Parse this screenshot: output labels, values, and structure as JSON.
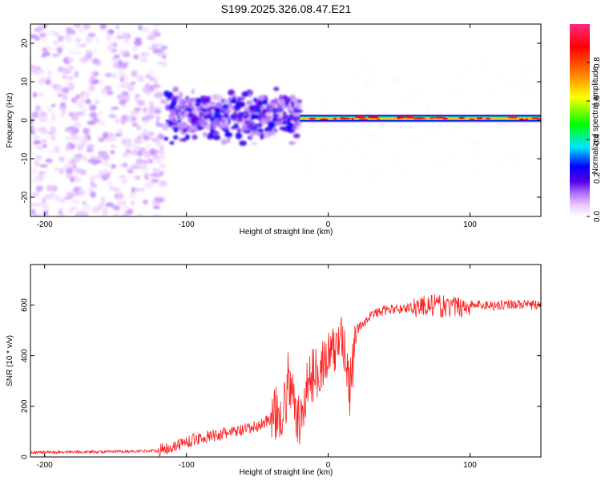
{
  "title": "S199.2025.326.08.47.E21",
  "chart_data": [
    {
      "type": "heatmap",
      "title": "S199.2025.326.08.47.E21",
      "xlabel": "Height of straight line (km)",
      "ylabel": "Frequency (Hz)",
      "xlim": [
        -210,
        150
      ],
      "ylim": [
        -25,
        25
      ],
      "xticks": [
        -200,
        -100,
        0,
        100
      ],
      "xtick_labels": [
        "-200",
        "-100",
        "0",
        "100"
      ],
      "yticks": [
        -20,
        -10,
        0,
        10,
        20
      ],
      "ytick_labels": [
        "-20",
        "-10",
        "0",
        "10",
        "20"
      ],
      "colorbar": {
        "label": "Normalized spectral amplitude",
        "range": [
          0.0,
          1.0
        ],
        "ticks": [
          0.0,
          0.2,
          0.4,
          0.6,
          0.8
        ],
        "tick_labels": [
          "0.0",
          "0.2",
          "0.4",
          "0.6",
          "0.8"
        ],
        "colors": [
          "#ffffff",
          "#e9c8ff",
          "#b070ff",
          "#5a00e6",
          "#0000ff",
          "#00e5ff",
          "#00ff00",
          "#ffff00",
          "#ff8000",
          "#ff0000",
          "#ff2a80"
        ]
      },
      "regions": [
        {
          "x_range": [
            -210,
            -115
          ],
          "freq_range": [
            -25,
            25
          ],
          "amplitude": 0.05,
          "description": "broadband diffuse"
        },
        {
          "x_range": [
            -115,
            -20
          ],
          "freq_range": [
            -8,
            10
          ],
          "amplitude": 0.15
        },
        {
          "x_range": [
            -20,
            150
          ],
          "freq_center": 0.5,
          "freq_width": 2,
          "amplitude": 0.8
        }
      ]
    },
    {
      "type": "line",
      "xlabel": "Height of straight line (km)",
      "ylabel": "SNR (10 * v/v)",
      "xlim": [
        -210,
        150
      ],
      "ylim": [
        0,
        760
      ],
      "xticks": [
        -200,
        -100,
        0,
        100
      ],
      "xtick_labels": [
        "-200",
        "-100",
        "0",
        "100"
      ],
      "yticks": [
        0,
        200,
        400,
        600
      ],
      "ytick_labels": [
        "0",
        "200",
        "400",
        "600"
      ],
      "series": [
        {
          "name": "SNR",
          "color": "#ff2020",
          "x": [
            -210,
            -200,
            -180,
            -160,
            -140,
            -120,
            -110,
            -100,
            -90,
            -80,
            -70,
            -60,
            -50,
            -40,
            -30,
            -28,
            -25,
            -20,
            -15,
            -10,
            -5,
            0,
            5,
            10,
            15,
            20,
            30,
            40,
            50,
            60,
            70,
            80,
            90,
            100,
            110,
            120,
            130,
            140,
            150
          ],
          "values": [
            18,
            18,
            20,
            20,
            22,
            25,
            40,
            60,
            75,
            85,
            95,
            105,
            120,
            155,
            200,
            330,
            220,
            120,
            280,
            330,
            360,
            390,
            420,
            500,
            250,
            500,
            560,
            580,
            585,
            590,
            600,
            595,
            590,
            600,
            600,
            600,
            605,
            600,
            600
          ]
        }
      ]
    }
  ]
}
